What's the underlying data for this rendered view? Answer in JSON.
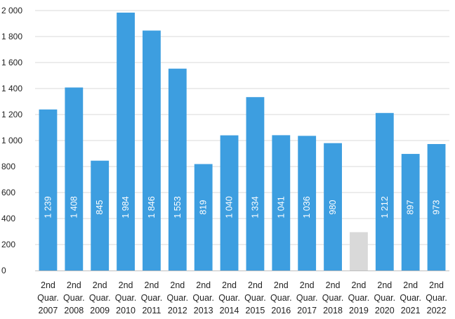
{
  "chart_data": {
    "type": "bar",
    "title": "",
    "xlabel": "",
    "ylabel": "",
    "ylim": [
      0,
      2000
    ],
    "ytick_step": 200,
    "yticks": [
      "0",
      "200",
      "400",
      "600",
      "800",
      "1 000",
      "1 200",
      "1 400",
      "1 600",
      "1 800",
      "2 000"
    ],
    "grid": true,
    "legend": "none",
    "categories": [
      [
        "2nd",
        "Quar.",
        "2007"
      ],
      [
        "2nd",
        "Quar.",
        "2008"
      ],
      [
        "2nd",
        "Quar.",
        "2009"
      ],
      [
        "2nd",
        "Quar.",
        "2010"
      ],
      [
        "2nd",
        "Quar.",
        "2011"
      ],
      [
        "2nd",
        "Quar.",
        "2012"
      ],
      [
        "2nd",
        "Quar.",
        "2013"
      ],
      [
        "2nd",
        "Quar.",
        "2014"
      ],
      [
        "2nd",
        "Quar.",
        "2015"
      ],
      [
        "2nd",
        "Quar.",
        "2016"
      ],
      [
        "2nd",
        "Quar.",
        "2017"
      ],
      [
        "2nd",
        "Quar.",
        "2018"
      ],
      [
        "2nd",
        "Quar.",
        "2019"
      ],
      [
        "2nd",
        "Quar.",
        "2020"
      ],
      [
        "2nd",
        "Quar.",
        "2021"
      ],
      [
        "2nd",
        "Quar.",
        "2022"
      ]
    ],
    "values": [
      1239,
      1408,
      845,
      1984,
      1846,
      1553,
      819,
      1040,
      1334,
      1041,
      1036,
      980,
      295,
      1212,
      897,
      973
    ],
    "data_labels": [
      "1 239",
      "1 408",
      "845",
      "1 984",
      "1 846",
      "1 553",
      "819",
      "1 040",
      "1 334",
      "1 041",
      "1 036",
      "980",
      "",
      "1 212",
      "897",
      "973"
    ],
    "colors": {
      "bar": "#3d9ee0",
      "highlight": "#d9d9d9",
      "grid": "#d9d9d9"
    },
    "highlight_index": 12
  }
}
